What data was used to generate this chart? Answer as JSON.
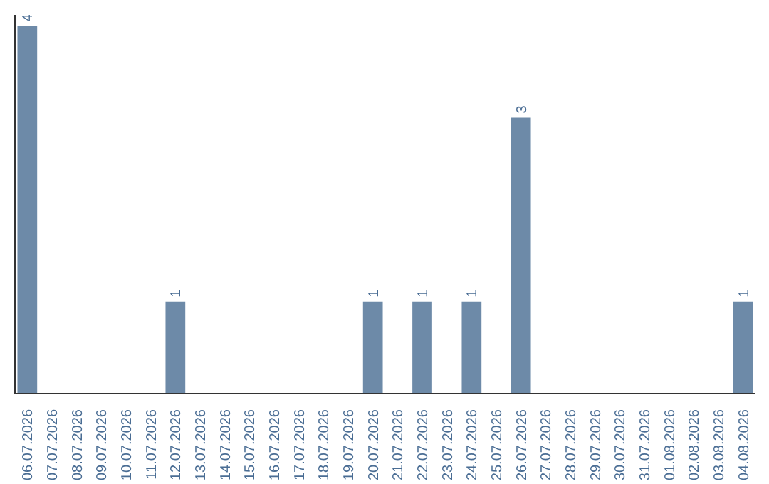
{
  "chart_data": {
    "type": "bar",
    "categories": [
      "06.07.2026",
      "07.07.2026",
      "08.07.2026",
      "09.07.2026",
      "10.07.2026",
      "11.07.2026",
      "12.07.2026",
      "13.07.2026",
      "14.07.2026",
      "15.07.2026",
      "16.07.2026",
      "17.07.2026",
      "18.07.2026",
      "19.07.2026",
      "20.07.2026",
      "21.07.2026",
      "22.07.2026",
      "23.07.2026",
      "24.07.2026",
      "25.07.2026",
      "26.07.2026",
      "27.07.2026",
      "28.07.2026",
      "29.07.2026",
      "30.07.2026",
      "31.07.2026",
      "01.08.2026",
      "02.08.2026",
      "03.08.2026",
      "04.08.2026"
    ],
    "values": [
      4,
      0,
      0,
      0,
      0,
      0,
      1,
      0,
      0,
      0,
      0,
      0,
      0,
      0,
      1,
      0,
      1,
      0,
      1,
      0,
      3,
      0,
      0,
      0,
      0,
      0,
      0,
      0,
      0,
      1
    ],
    "value_labels": [
      "4",
      null,
      null,
      null,
      null,
      null,
      "1",
      null,
      null,
      null,
      null,
      null,
      null,
      null,
      "1",
      null,
      "1",
      null,
      "1",
      null,
      "3",
      null,
      null,
      null,
      null,
      null,
      null,
      null,
      null,
      "1"
    ],
    "color": "#6d8aa8",
    "grid": false,
    "tick_labels": "x"
  }
}
